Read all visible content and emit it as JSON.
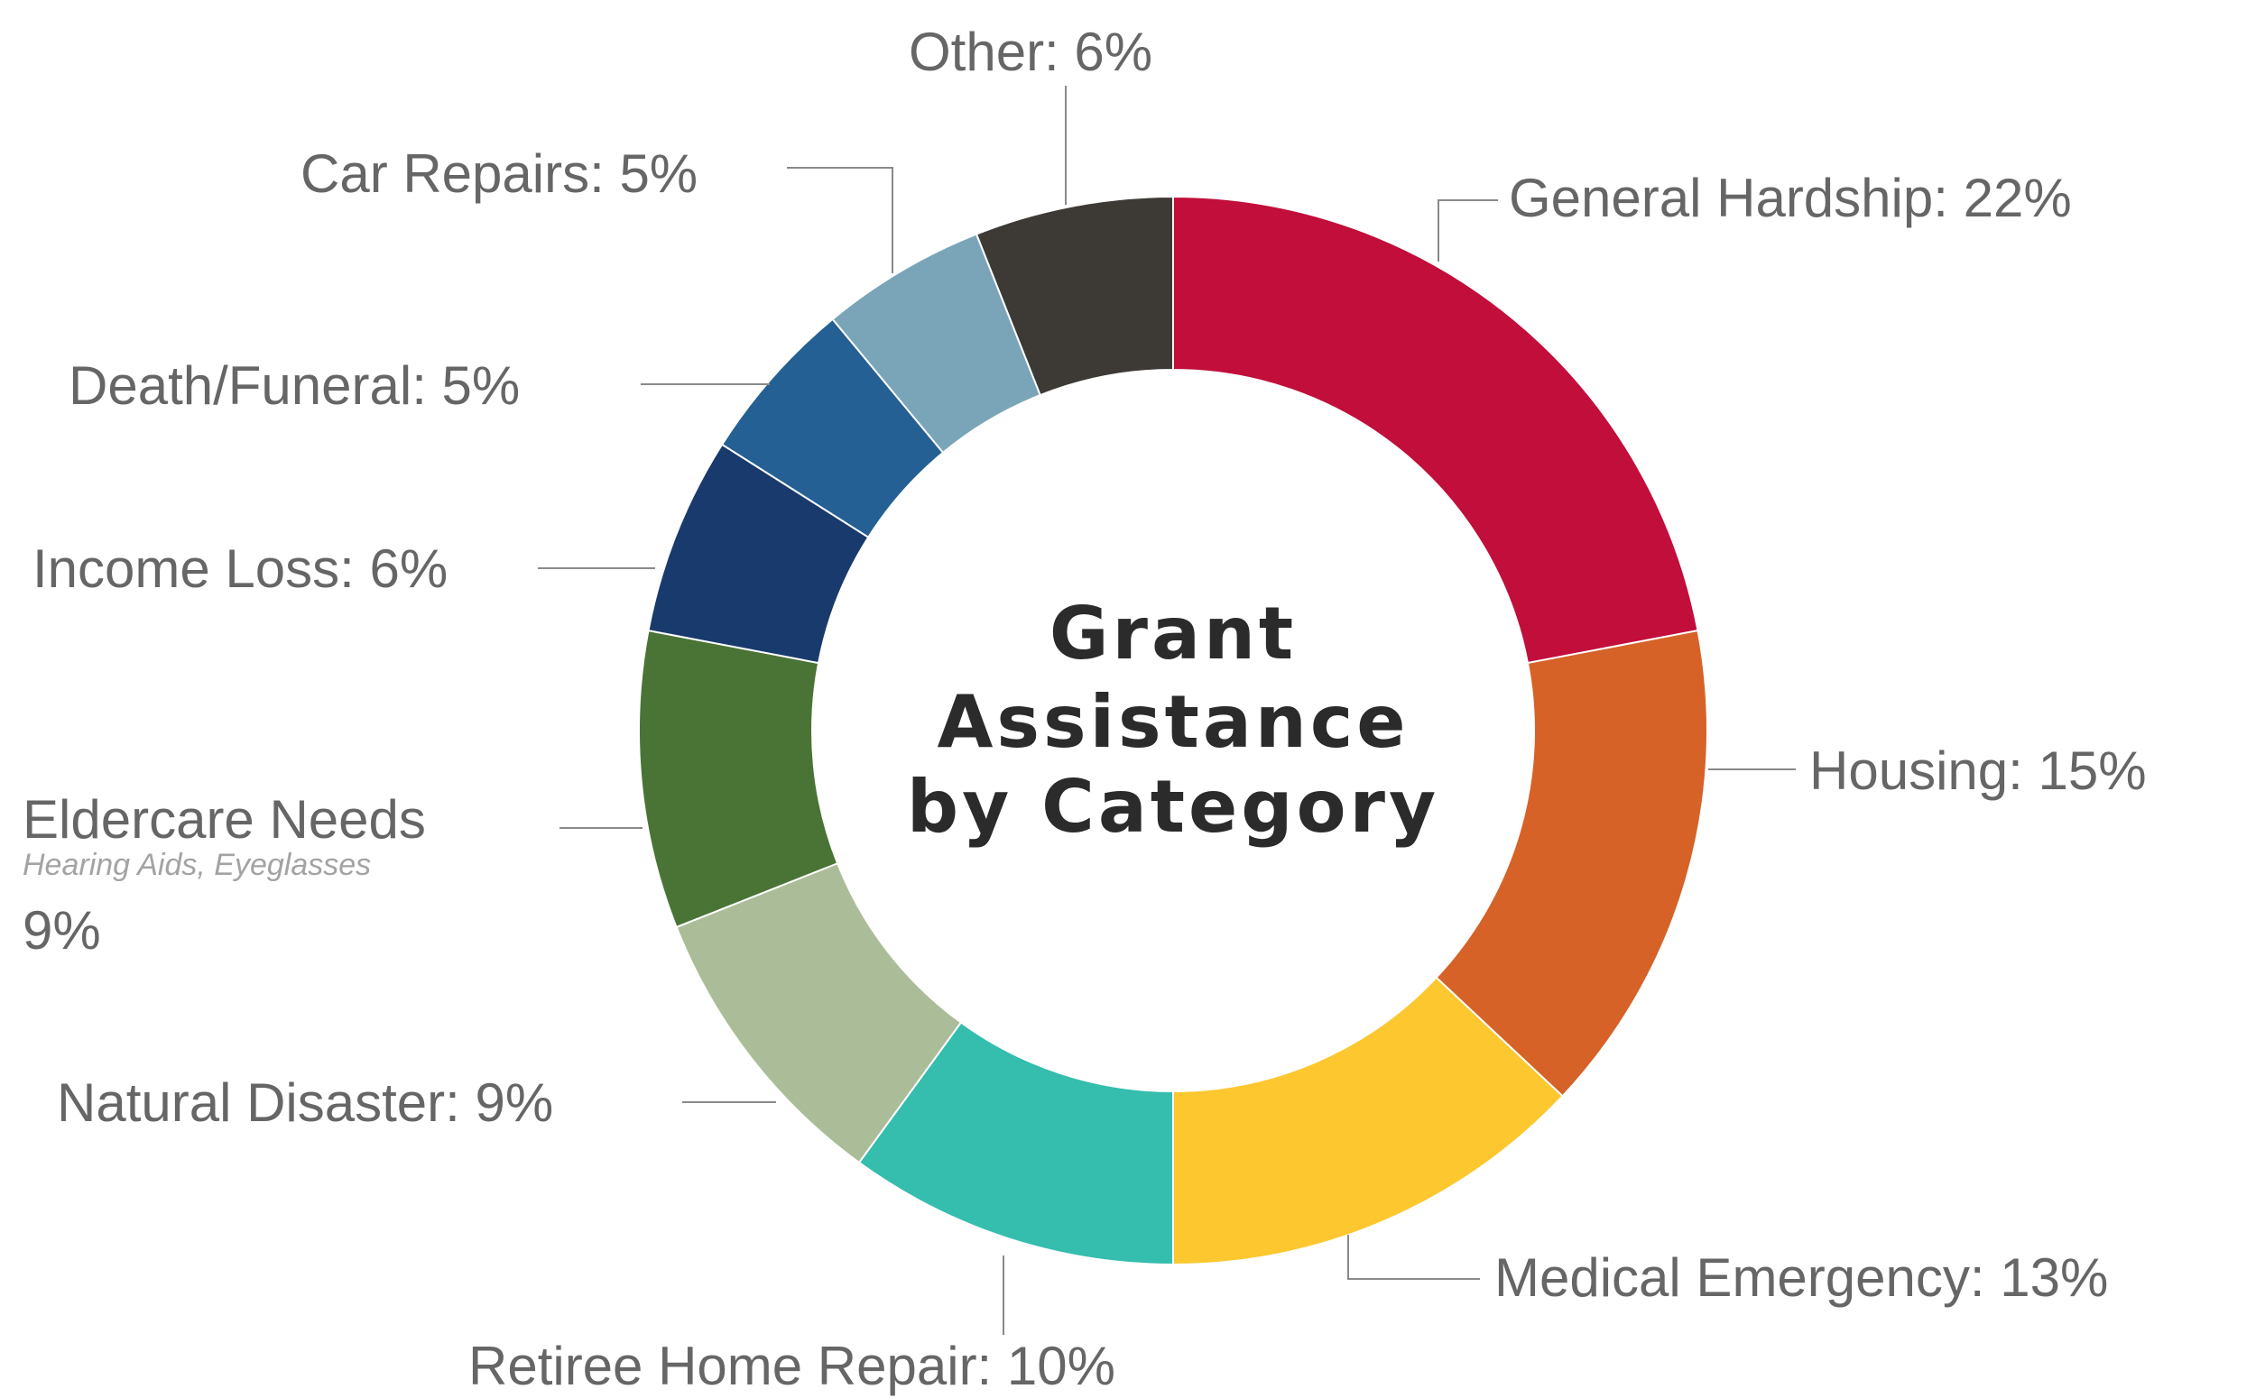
{
  "chart_data": {
    "type": "pie",
    "variant": "donut",
    "title_lines": [
      "Grant",
      "Assistance",
      "by Category"
    ],
    "slices": [
      {
        "label": "General Hardship: 22%",
        "category": "General Hardship",
        "value": 22,
        "color": "#c10e3b"
      },
      {
        "label": "Housing: 15%",
        "category": "Housing",
        "value": 15,
        "color": "#d66228"
      },
      {
        "label": "Medical Emergency: 13%",
        "category": "Medical Emergency",
        "value": 13,
        "color": "#fdc730"
      },
      {
        "label": "Retiree Home Repair: 10%",
        "category": "Retiree Home Repair",
        "value": 10,
        "color": "#35bdae"
      },
      {
        "label": "Natural Disaster: 9%",
        "category": "Natural Disaster",
        "value": 9,
        "color": "#abbd98"
      },
      {
        "label": "Eldercare Needs",
        "category": "Eldercare Needs",
        "sublabel": "Hearing Aids, Eyeglasses",
        "value_label": "9%",
        "value": 9,
        "color": "#4a7435"
      },
      {
        "label": "Income Loss: 6%",
        "category": "Income Loss",
        "value": 6,
        "color": "#193a6d"
      },
      {
        "label": "Death/Funeral: 5%",
        "category": "Death/Funeral",
        "value": 5,
        "color": "#246093"
      },
      {
        "label": "Car Repairs: 5%",
        "category": "Car Repairs",
        "value": 5,
        "color": "#7aa5b9"
      },
      {
        "label": "Other: 6%",
        "category": "Other",
        "value": 6,
        "color": "#3d3a35"
      }
    ]
  }
}
